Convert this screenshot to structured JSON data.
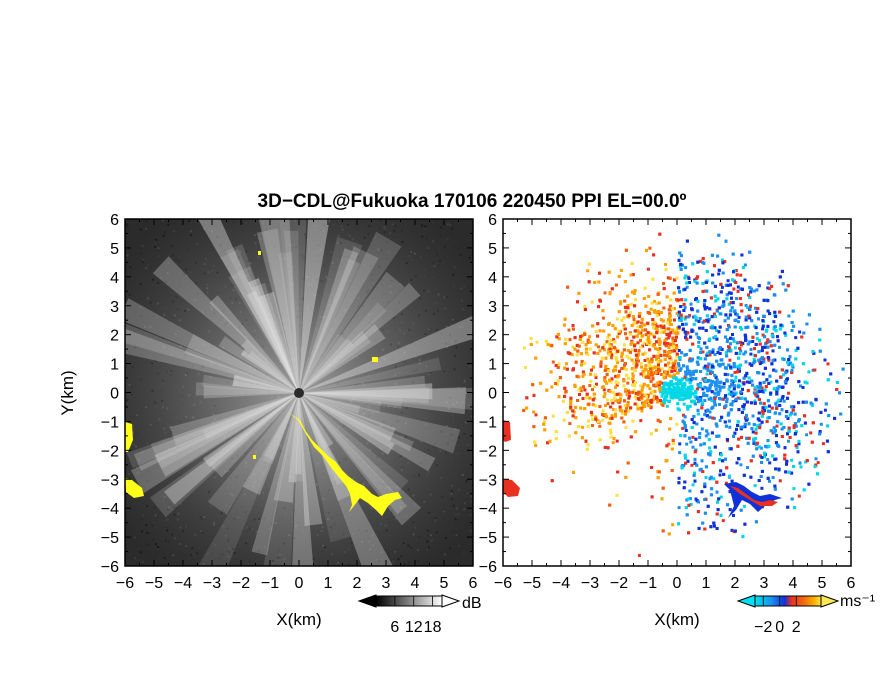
{
  "title": "3D−CDL@Fukuoka 170106 220450 PPI EL=00.0º",
  "chart_data": [
    {
      "type": "heatmap",
      "panel": "left",
      "quantity": "signal strength",
      "xlabel": "X(km)",
      "ylabel": "Y(km)",
      "xlim": [
        -6,
        6
      ],
      "ylim": [
        -6,
        6
      ],
      "x_ticks": [
        "−6",
        "−5",
        "−4",
        "−3",
        "−2",
        "−1",
        "0",
        "1",
        "2",
        "3",
        "4",
        "5",
        "6"
      ],
      "y_ticks": [
        "6",
        "5",
        "4",
        "3",
        "2",
        "1",
        "0",
        "−1",
        "−2",
        "−3",
        "−4",
        "−5",
        "−6"
      ],
      "colorbar": {
        "unit": "dB",
        "ticks": [
          "6",
          "12",
          "18"
        ],
        "range": [
          0,
          21
        ],
        "colors": [
          "#000000",
          "#ffffff"
        ]
      },
      "background_color": "#2b2b2b",
      "clutter_color": "#ffff1a",
      "center_marker": [
        0,
        0
      ]
    },
    {
      "type": "heatmap",
      "panel": "right",
      "quantity": "Doppler velocity",
      "xlabel": "X(km)",
      "xlim": [
        -6,
        6
      ],
      "ylim": [
        -6,
        6
      ],
      "x_ticks": [
        "−6",
        "−5",
        "−4",
        "−3",
        "−2",
        "−1",
        "0",
        "1",
        "2",
        "3",
        "4",
        "5",
        "6"
      ],
      "colorbar": {
        "unit": "ms⁻¹",
        "ticks": [
          "−2",
          "0",
          "2"
        ],
        "range": [
          -3,
          5
        ],
        "colors": [
          "#00d8e8",
          "#1a90f0",
          "#1030d8",
          "#e83020",
          "#f06010",
          "#ffa000",
          "#ffe040"
        ]
      },
      "center_marker": [
        0,
        0
      ]
    }
  ]
}
